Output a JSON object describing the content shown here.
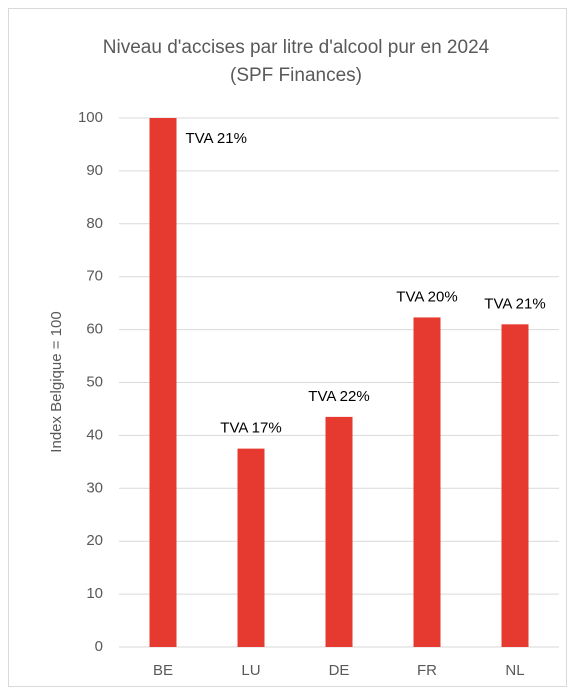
{
  "chart_data": {
    "type": "bar",
    "title": "Niveau d'accises par litre d'alcool pur en 2024 (SPF Finances)",
    "y_label": "Index Belgique = 100",
    "categories": [
      "BE",
      "LU",
      "DE",
      "FR",
      "NL"
    ],
    "values": [
      100,
      37.5,
      43.5,
      62.3,
      61
    ],
    "annotations": [
      "TVA 21%",
      "TVA 17%",
      "TVA 22%",
      "TVA 20%",
      "TVA 21%"
    ],
    "color": "#e63a30",
    "ylim": [
      0,
      100
    ],
    "yticks": [
      0,
      10,
      20,
      30,
      40,
      50,
      60,
      70,
      80,
      90,
      100
    ],
    "grid": true
  }
}
